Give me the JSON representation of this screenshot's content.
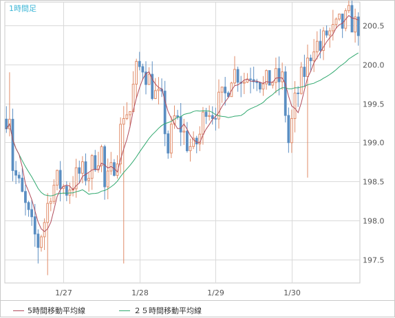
{
  "chart_data": {
    "type": "candlestick",
    "title": "1時間足",
    "ylim": [
      197.2,
      200.8
    ],
    "y_ticks": [
      200.5,
      200.0,
      199.5,
      199.0,
      198.5,
      198.0,
      197.5
    ],
    "y_tick_labels": [
      "200.5",
      "200.0",
      "199.5",
      "199.0",
      "198.5",
      "198.0",
      "197.5"
    ],
    "x_labels": [
      "1/27",
      "1/28",
      "1/29",
      "1/30"
    ],
    "x_label_positions_hours": [
      18,
      42,
      66,
      90
    ],
    "grid": true,
    "legend_position": "bottom-left",
    "colors": {
      "up": "#e08b68",
      "down": "#5b8ec2",
      "ma5": "#b04a5a",
      "ma25": "#2fa86e",
      "grid": "#d9d9d9",
      "title": "#3cb6d6"
    },
    "series": [
      {
        "name": "5時間移動平均線",
        "type": "ma5"
      },
      {
        "name": "２５時間移動平均線",
        "type": "ma25"
      }
    ],
    "control_points": [
      [
        0,
        199.3
      ],
      [
        2,
        199.4
      ],
      [
        3,
        198.7
      ],
      [
        6,
        198.3
      ],
      [
        9,
        197.9
      ],
      [
        11,
        197.7
      ],
      [
        13,
        198.0
      ],
      [
        15,
        198.4
      ],
      [
        17,
        198.5
      ],
      [
        20,
        198.4
      ],
      [
        22,
        198.5
      ],
      [
        24,
        198.6
      ],
      [
        27,
        198.6
      ],
      [
        29,
        198.8
      ],
      [
        31,
        198.9
      ],
      [
        32,
        198.4
      ],
      [
        34,
        198.6
      ],
      [
        36,
        198.9
      ],
      [
        38,
        199.4
      ],
      [
        40,
        199.4
      ],
      [
        41,
        199.7
      ],
      [
        42,
        199.9
      ],
      [
        44,
        200.0
      ],
      [
        46,
        199.8
      ],
      [
        48,
        199.6
      ],
      [
        50,
        199.5
      ],
      [
        52,
        198.9
      ],
      [
        54,
        199.3
      ],
      [
        56,
        199.2
      ],
      [
        58,
        199.0
      ],
      [
        60,
        198.9
      ],
      [
        62,
        199.1
      ],
      [
        64,
        199.5
      ],
      [
        66,
        199.4
      ],
      [
        68,
        199.5
      ],
      [
        70,
        199.6
      ],
      [
        72,
        199.9
      ],
      [
        74,
        199.9
      ],
      [
        76,
        199.8
      ],
      [
        78,
        199.9
      ],
      [
        80,
        199.9
      ],
      [
        82,
        199.7
      ],
      [
        84,
        199.8
      ],
      [
        86,
        199.8
      ],
      [
        88,
        199.8
      ],
      [
        90,
        199.0
      ],
      [
        92,
        199.5
      ],
      [
        94,
        199.8
      ],
      [
        96,
        200.0
      ],
      [
        98,
        200.3
      ],
      [
        100,
        200.2
      ],
      [
        102,
        200.4
      ],
      [
        104,
        200.4
      ],
      [
        106,
        200.5
      ],
      [
        107,
        200.5
      ],
      [
        109,
        200.6
      ],
      [
        111,
        200.5
      ]
    ],
    "hours": 112
  }
}
